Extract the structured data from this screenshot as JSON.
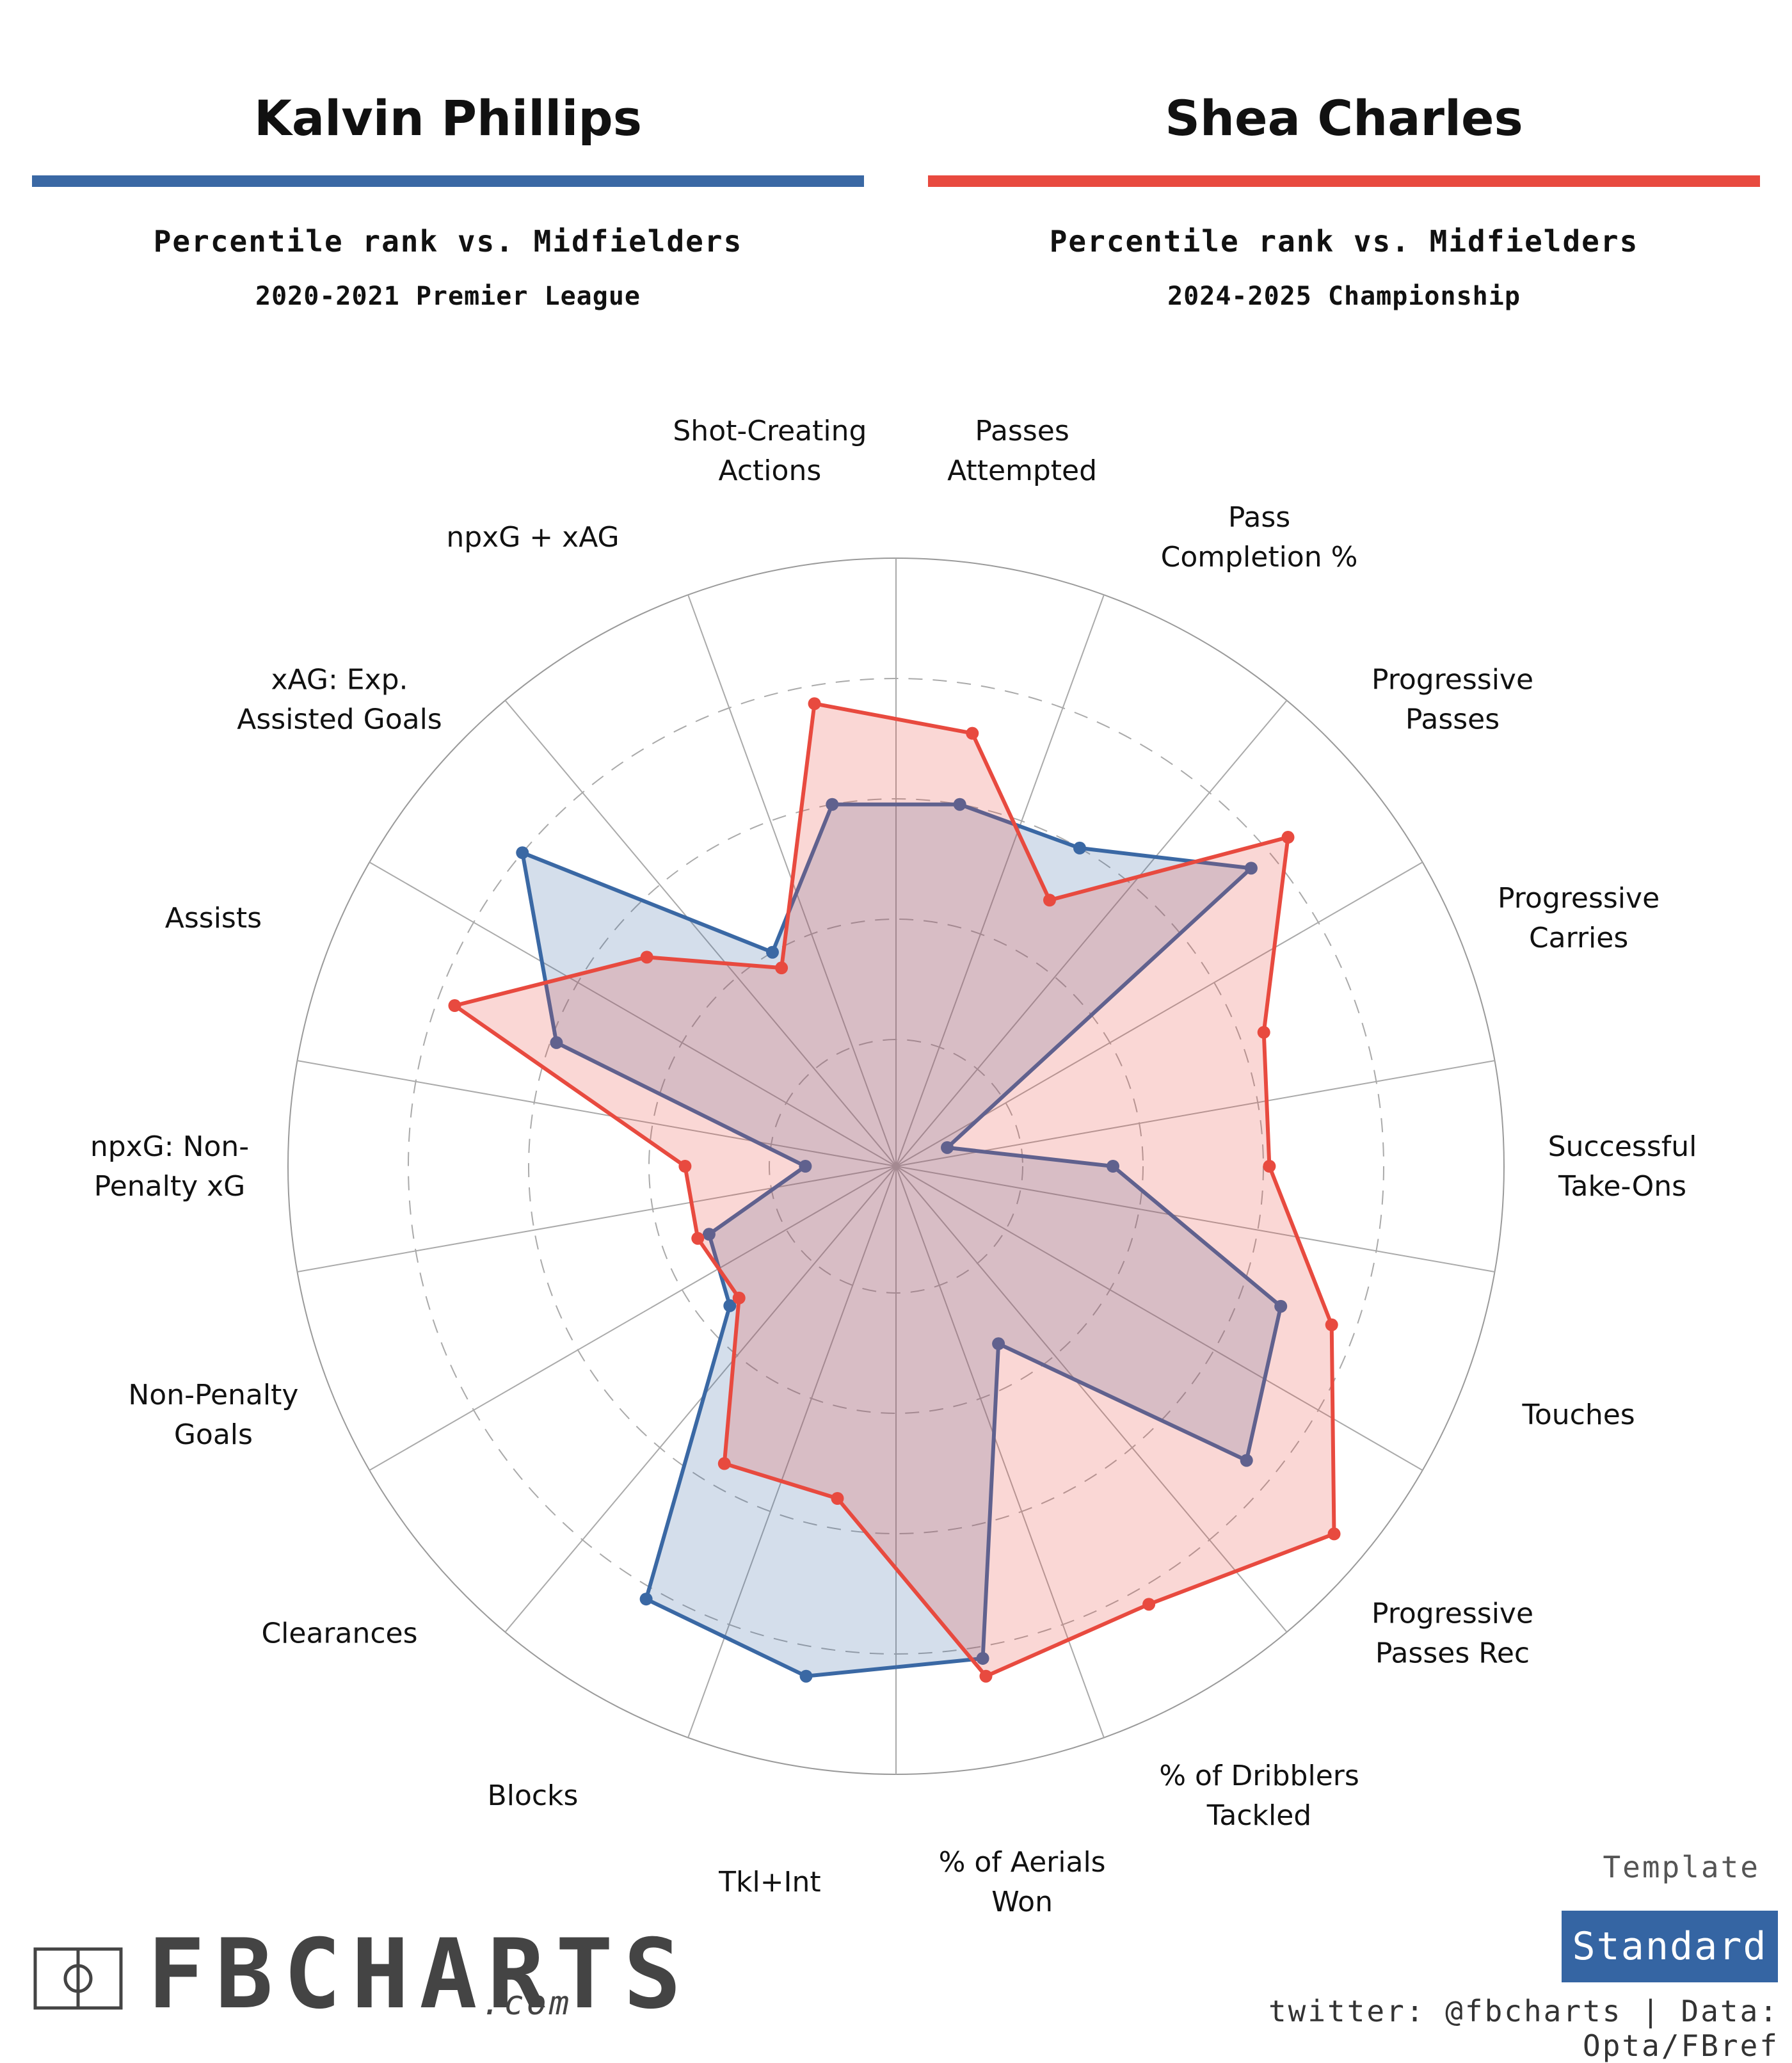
{
  "header": {
    "player1": {
      "name": "Kalvin Phillips",
      "subtitle": "Percentile rank vs. Midfielders",
      "season": "2020-2021 Premier League",
      "color": "#3a68a4"
    },
    "player2": {
      "name": "Shea Charles",
      "subtitle": "Percentile rank vs. Midfielders",
      "season": "2024-2025 Championship",
      "color": "#e84a3f"
    }
  },
  "chart_data": {
    "type": "radar",
    "range": [
      0,
      100
    ],
    "grid": true,
    "categories": [
      [
        "Passes",
        "Attempted"
      ],
      [
        "Pass",
        "Completion %"
      ],
      [
        "Progressive",
        "Passes"
      ],
      [
        "Progressive",
        "Carries"
      ],
      [
        "Successful",
        "Take-Ons"
      ],
      [
        "Touches"
      ],
      [
        "Progressive",
        "Passes Rec"
      ],
      [
        "% of Dribblers",
        "Tackled"
      ],
      [
        "% of Aerials",
        "Won"
      ],
      [
        "Tkl+Int"
      ],
      [
        "Blocks"
      ],
      [
        "Clearances"
      ],
      [
        "Non-Penalty",
        "Goals"
      ],
      [
        "npxG: Non-",
        "Penalty xG"
      ],
      [
        "Assists"
      ],
      [
        "xAG: Exp.",
        "Assisted Goals"
      ],
      [
        "npxG + xAG"
      ],
      [
        "Shot-Creating",
        "Actions"
      ]
    ],
    "series": [
      {
        "name": "Kalvin Phillips",
        "color": "#3a68a4",
        "values": [
          60,
          60,
          76,
          8,
          35,
          67,
          75,
          33,
          82,
          85,
          82,
          35,
          32,
          14,
          59,
          80,
          40,
          60
        ]
      },
      {
        "name": "Shea Charles",
        "color": "#e84a3f",
        "values": [
          72,
          50,
          84,
          64,
          61,
          76,
          94,
          83,
          85,
          55,
          56,
          33,
          34,
          34,
          77,
          53,
          37,
          77
        ]
      }
    ]
  },
  "branding": {
    "template_label": "Template",
    "template_value": "Standard",
    "logo_text": "FBCHARTS",
    "logo_domain": ".com",
    "credit": "twitter: @fbcharts | Data: Opta/FBref"
  }
}
